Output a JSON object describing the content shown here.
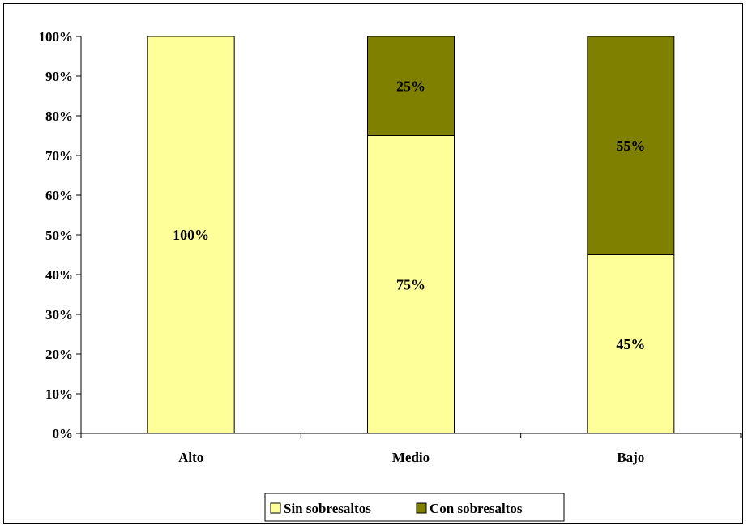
{
  "chart_data": {
    "type": "bar",
    "stacked": true,
    "normalized_percent": true,
    "categories": [
      "Alto",
      "Medio",
      "Bajo"
    ],
    "series": [
      {
        "name": "Sin sobresaltos",
        "values": [
          100,
          75,
          45
        ],
        "labels": [
          "100%",
          "75%",
          "45%"
        ],
        "color": "#ffff99"
      },
      {
        "name": "Con sobresaltos",
        "values": [
          0,
          25,
          55
        ],
        "labels": [
          "",
          "25%",
          "55%"
        ],
        "color": "#808000"
      }
    ],
    "y_ticks": [
      "0%",
      "10%",
      "20%",
      "30%",
      "40%",
      "50%",
      "60%",
      "70%",
      "80%",
      "90%",
      "100%"
    ],
    "ylim": [
      0,
      100
    ],
    "grid": false,
    "legend_position": "bottom"
  }
}
